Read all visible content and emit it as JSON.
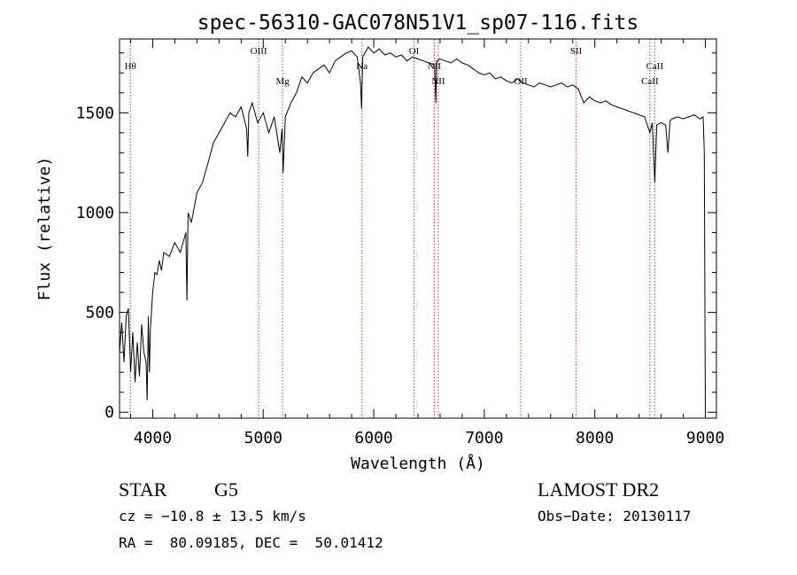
{
  "chart_data": {
    "type": "line",
    "title": "spec-56310-GAC078N51V1_sp07-116.fits",
    "xlabel": "Wavelength (Å)",
    "ylabel": "Flux (relative)",
    "xlim": [
      3700,
      9100
    ],
    "ylim": [
      -30,
      1870
    ],
    "x_ticks": [
      4000,
      5000,
      6000,
      7000,
      8000,
      9000
    ],
    "x_tick_labels": [
      "4000",
      "5000",
      "6000",
      "7000",
      "8000",
      "9000"
    ],
    "y_ticks": [
      0,
      500,
      1000,
      1500
    ],
    "y_tick_labels": [
      "0",
      "500",
      "1000",
      "1500"
    ],
    "grid": false,
    "series": [
      {
        "x": [
          3700,
          3720,
          3740,
          3760,
          3780,
          3800,
          3820,
          3840,
          3860,
          3880,
          3900,
          3920,
          3940,
          3950,
          3960,
          3970,
          3980,
          4000,
          4020,
          4040,
          4060,
          4080,
          4100,
          4150,
          4200,
          4250,
          4300,
          4310,
          4320,
          4350,
          4400,
          4450,
          4500,
          4550,
          4600,
          4650,
          4700,
          4750,
          4800,
          4850,
          4860,
          4870,
          4900,
          4950,
          5000,
          5050,
          5100,
          5150,
          5170,
          5180,
          5200,
          5250,
          5300,
          5350,
          5400,
          5450,
          5500,
          5550,
          5600,
          5650,
          5700,
          5750,
          5800,
          5850,
          5880,
          5890,
          5900,
          5950,
          6000,
          6050,
          6100,
          6150,
          6200,
          6250,
          6300,
          6350,
          6400,
          6450,
          6500,
          6550,
          6562,
          6570,
          6600,
          6650,
          6700,
          6750,
          6800,
          6850,
          6900,
          6950,
          7000,
          7050,
          7100,
          7150,
          7200,
          7250,
          7300,
          7350,
          7400,
          7450,
          7500,
          7550,
          7600,
          7650,
          7700,
          7750,
          7800,
          7850,
          7900,
          7950,
          8000,
          8050,
          8100,
          8150,
          8200,
          8250,
          8300,
          8350,
          8400,
          8450,
          8498,
          8520,
          8542,
          8560,
          8600,
          8640,
          8662,
          8680,
          8700,
          8750,
          8800,
          8850,
          8900,
          8950,
          8980,
          8990,
          9000
        ],
        "y": [
          300,
          450,
          250,
          480,
          520,
          200,
          400,
          150,
          350,
          180,
          440,
          300,
          250,
          60,
          480,
          200,
          420,
          600,
          700,
          690,
          760,
          710,
          800,
          780,
          850,
          800,
          900,
          560,
          1000,
          950,
          1100,
          1150,
          1250,
          1350,
          1400,
          1450,
          1500,
          1480,
          1530,
          1420,
          1280,
          1500,
          1550,
          1450,
          1500,
          1400,
          1480,
          1300,
          1420,
          1200,
          1480,
          1550,
          1600,
          1680,
          1650,
          1700,
          1720,
          1740,
          1700,
          1760,
          1780,
          1800,
          1810,
          1780,
          1650,
          1520,
          1780,
          1830,
          1800,
          1820,
          1790,
          1800,
          1780,
          1790,
          1760,
          1780,
          1770,
          1760,
          1750,
          1740,
          1550,
          1760,
          1770,
          1760,
          1750,
          1770,
          1750,
          1740,
          1720,
          1700,
          1690,
          1700,
          1670,
          1680,
          1660,
          1650,
          1670,
          1650,
          1640,
          1630,
          1650,
          1640,
          1630,
          1640,
          1650,
          1630,
          1640,
          1620,
          1550,
          1580,
          1560,
          1550,
          1560,
          1540,
          1530,
          1520,
          1510,
          1500,
          1490,
          1480,
          1400,
          1450,
          1150,
          1440,
          1450,
          1440,
          1300,
          1460,
          1470,
          1480,
          1470,
          1480,
          1490,
          1470,
          1480,
          1300,
          10
        ]
      }
    ],
    "annotations": [
      {
        "label": "Hθ",
        "x": 3798,
        "row": 2
      },
      {
        "label": "OIII",
        "x": 4959,
        "row": 1
      },
      {
        "label": "Mg",
        "x": 5175,
        "row": 3
      },
      {
        "label": "Na",
        "x": 5893,
        "row": 2
      },
      {
        "label": "OI",
        "x": 6364,
        "row": 1
      },
      {
        "label": "NII",
        "x": 6548,
        "row": 2
      },
      {
        "label": "NII",
        "x": 6584,
        "row": 3
      },
      {
        "label": "OII",
        "x": 7330,
        "row": 3
      },
      {
        "label": "SII",
        "x": 7831,
        "row": 1
      },
      {
        "label": "CaII",
        "x": 8498,
        "row": 3
      },
      {
        "label": "CaII",
        "x": 8542,
        "row": 2
      }
    ]
  },
  "info": {
    "object_class": "STAR",
    "subclass": "G5",
    "survey": "LAMOST DR2",
    "velocity": "cz = −10.8 ± 13.5 km/s",
    "obs_date": "Obs−Date: 20130117",
    "coordinates": "RA =  80.09185, DEC =  50.01412"
  }
}
